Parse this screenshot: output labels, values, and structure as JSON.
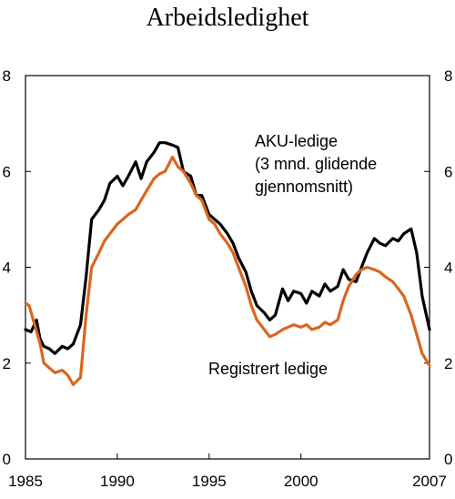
{
  "chart_data": {
    "type": "line",
    "title": "Arbeidsledighet",
    "xlabel": "",
    "ylabel": "",
    "xlim": [
      1985,
      2007
    ],
    "ylim": [
      0,
      8
    ],
    "x_ticks": [
      "1985",
      "1990",
      "1995",
      "2000",
      "2007"
    ],
    "x_tick_values": [
      1985,
      1990,
      1995,
      2000,
      2007
    ],
    "y_ticks": [
      "0",
      "2",
      "4",
      "6",
      "8"
    ],
    "y_tick_values": [
      0,
      2,
      4,
      6,
      8
    ],
    "grid": false,
    "annotations": {
      "aku_line1": "AKU-ledige",
      "aku_line2": "(3 mnd. glidende",
      "aku_line3": "gjennomsnitt)",
      "registrert": "Registrert ledige"
    },
    "series": [
      {
        "name": "AKU-ledige (3 mnd. glidende gjennomsnitt)",
        "color": "#000000",
        "x": [
          1985.0,
          1985.3,
          1985.6,
          1985.8,
          1986.0,
          1986.3,
          1986.6,
          1987.0,
          1987.3,
          1987.6,
          1988.0,
          1988.3,
          1988.6,
          1989.0,
          1989.3,
          1989.6,
          1990.0,
          1990.3,
          1990.6,
          1991.0,
          1991.3,
          1991.6,
          1992.0,
          1992.3,
          1992.6,
          1993.0,
          1993.3,
          1993.6,
          1994.0,
          1994.3,
          1994.6,
          1995.0,
          1995.3,
          1995.6,
          1996.0,
          1996.3,
          1996.6,
          1997.0,
          1997.3,
          1997.6,
          1998.0,
          1998.3,
          1998.6,
          1999.0,
          1999.3,
          1999.6,
          2000.0,
          2000.3,
          2000.6,
          2001.0,
          2001.3,
          2001.6,
          2002.0,
          2002.3,
          2002.6,
          2003.0,
          2003.3,
          2003.6,
          2004.0,
          2004.3,
          2004.6,
          2005.0,
          2005.3,
          2005.6,
          2006.0,
          2006.3,
          2006.6,
          2007.0
        ],
        "values": [
          2.7,
          2.65,
          2.9,
          2.5,
          2.35,
          2.3,
          2.2,
          2.35,
          2.3,
          2.4,
          2.8,
          3.8,
          5.0,
          5.2,
          5.4,
          5.75,
          5.9,
          5.7,
          5.9,
          6.2,
          5.85,
          6.2,
          6.4,
          6.6,
          6.6,
          6.55,
          6.5,
          6.0,
          5.9,
          5.5,
          5.5,
          5.1,
          5.0,
          4.9,
          4.7,
          4.5,
          4.2,
          3.9,
          3.5,
          3.2,
          3.05,
          2.9,
          3.0,
          3.55,
          3.3,
          3.5,
          3.45,
          3.25,
          3.5,
          3.4,
          3.65,
          3.5,
          3.6,
          3.95,
          3.75,
          3.7,
          4.0,
          4.3,
          4.6,
          4.5,
          4.45,
          4.6,
          4.55,
          4.7,
          4.8,
          4.3,
          3.4,
          2.7
        ]
      },
      {
        "name": "Registrert ledige",
        "color": "#d9661f",
        "x": [
          1985.0,
          1985.2,
          1985.5,
          1985.8,
          1986.0,
          1986.3,
          1986.6,
          1987.0,
          1987.3,
          1987.6,
          1988.0,
          1988.3,
          1988.6,
          1989.0,
          1989.3,
          1989.6,
          1990.0,
          1990.3,
          1990.6,
          1991.0,
          1991.3,
          1991.6,
          1992.0,
          1992.3,
          1992.6,
          1993.0,
          1993.3,
          1993.6,
          1994.0,
          1994.3,
          1994.6,
          1995.0,
          1995.3,
          1995.6,
          1996.0,
          1996.3,
          1996.6,
          1997.0,
          1997.3,
          1997.6,
          1998.0,
          1998.3,
          1998.6,
          1999.0,
          1999.3,
          1999.6,
          2000.0,
          2000.3,
          2000.6,
          2001.0,
          2001.3,
          2001.6,
          2002.0,
          2002.3,
          2002.6,
          2003.0,
          2003.3,
          2003.6,
          2004.0,
          2004.3,
          2004.6,
          2005.0,
          2005.3,
          2005.6,
          2006.0,
          2006.3,
          2006.6,
          2007.0
        ],
        "values": [
          3.25,
          3.2,
          2.8,
          2.4,
          2.0,
          1.9,
          1.8,
          1.85,
          1.75,
          1.55,
          1.7,
          3.0,
          4.0,
          4.3,
          4.55,
          4.7,
          4.9,
          5.0,
          5.1,
          5.2,
          5.4,
          5.6,
          5.85,
          5.95,
          6.0,
          6.3,
          6.1,
          6.0,
          5.75,
          5.5,
          5.4,
          5.0,
          4.9,
          4.7,
          4.5,
          4.3,
          4.0,
          3.6,
          3.2,
          2.9,
          2.7,
          2.55,
          2.6,
          2.7,
          2.75,
          2.8,
          2.75,
          2.8,
          2.7,
          2.75,
          2.85,
          2.8,
          2.9,
          3.3,
          3.6,
          3.85,
          3.95,
          4.0,
          3.95,
          3.9,
          3.8,
          3.7,
          3.55,
          3.4,
          3.0,
          2.6,
          2.2,
          1.95
        ]
      }
    ]
  }
}
